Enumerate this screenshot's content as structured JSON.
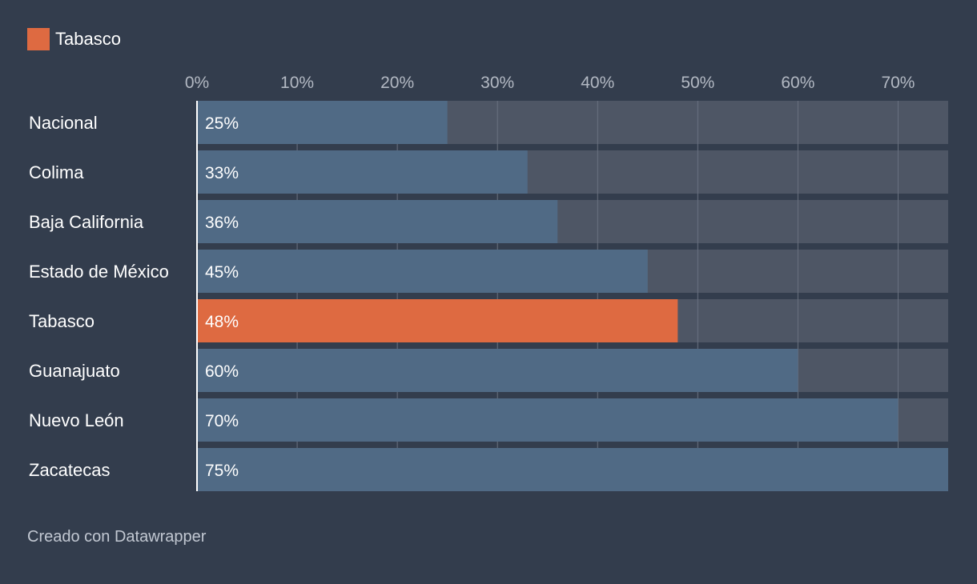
{
  "legend": {
    "label": "Tabasco",
    "color": "#de6a41"
  },
  "credit": "Creado con Datawrapper",
  "colors": {
    "background": "#333d4d",
    "bar": "#506a85",
    "highlight": "#de6a41",
    "track": "#4e5665",
    "grid": "#6a7280",
    "tick": "#b3b9c3",
    "text": "#ffffff"
  },
  "chart_data": {
    "type": "bar",
    "orientation": "horizontal",
    "categories": [
      "Nacional",
      "Colima",
      "Baja California",
      "Estado de México",
      "Tabasco",
      "Guanajuato",
      "Nuevo León",
      "Zacatecas"
    ],
    "values": [
      25,
      33,
      36,
      45,
      48,
      60,
      70,
      75
    ],
    "value_labels": [
      "25%",
      "33%",
      "36%",
      "45%",
      "48%",
      "60%",
      "70%",
      "75%"
    ],
    "highlight": [
      "Tabasco"
    ],
    "xlim": [
      0,
      75
    ],
    "xticks": [
      0,
      10,
      20,
      30,
      40,
      50,
      60,
      70
    ],
    "xtick_labels": [
      "0%",
      "10%",
      "20%",
      "30%",
      "40%",
      "50%",
      "60%",
      "70%"
    ],
    "grid": true,
    "axis_position": "top",
    "legend_position": "top-left"
  }
}
